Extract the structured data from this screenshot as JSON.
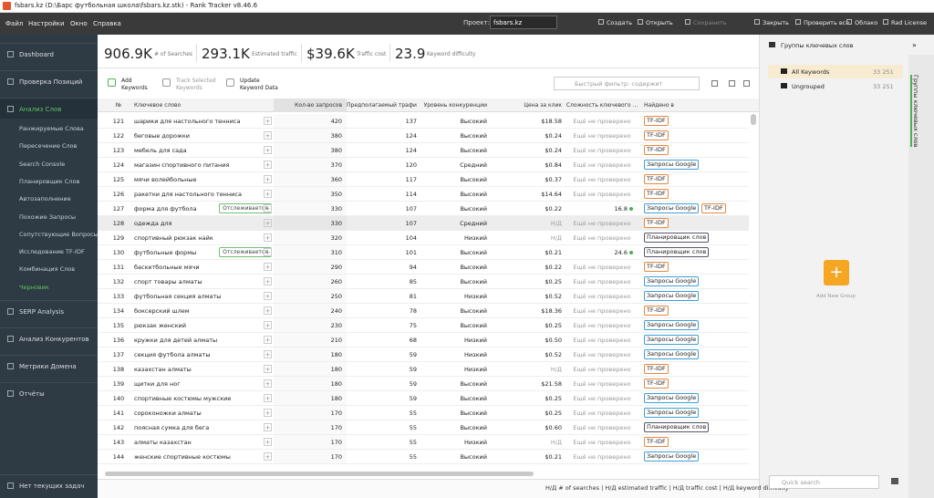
{
  "window": {
    "title": "fsbars.kz (D:\\Барс футбольная школа\\fsbars.kz.stk) - Rank Tracker v8.46.6"
  },
  "menu": [
    "Файл",
    "Настройки",
    "Окно",
    "Справка"
  ],
  "toolbar": {
    "project_label": "Проект:",
    "project": "fsbars.kz",
    "buttons": [
      "Создать",
      "Открыть",
      "Сохранить",
      "Закрыть",
      "Проверить все",
      "Облако",
      "Rad License"
    ]
  },
  "sidebar": {
    "top": [
      "Dashboard",
      "Проверка Позиций",
      "Анализ Слов"
    ],
    "subitems": [
      "Ранжируемые Слова",
      "Пересечение Слов",
      "Search Console",
      "Планировщик Слов",
      "Автозаполнение",
      "Похожие Запросы",
      "Сопутствующие Вопросы",
      "Исследование TF-IDF",
      "Комбинация Слов",
      "Черновик"
    ],
    "active_subitem": 9,
    "bottom": [
      "SERP Analysis",
      "Анализ Конкурентов",
      "Метрики Домена",
      "Отчёты"
    ],
    "status": "Нет текущих задач"
  },
  "stats": [
    {
      "value": "906.9K",
      "label": "# of Searches"
    },
    {
      "value": "293.1K",
      "label": "Estimated traffic"
    },
    {
      "value": "$39.6K",
      "label": "Traffic cost"
    },
    {
      "value": "23.9",
      "label": "Keyword difficulty"
    }
  ],
  "actions": [
    [
      "Add",
      "Keywords"
    ],
    [
      "Track Selected",
      "Keywords"
    ],
    [
      "Update",
      "Keyword Data"
    ]
  ],
  "filter_placeholder": "Быстрый фильтр: содержит",
  "table": {
    "columns": [
      "№",
      "Ключевое слово",
      "Кол-во запросов",
      "Предполагаемый трафик",
      "Уровень конкуренции",
      "Цена за клик",
      "Сложность ключевого ...",
      "Найдено в"
    ],
    "rows": [
      {
        "n": 121,
        "keyword": "шарики для настольного тенниса",
        "searches": 420,
        "traffic": 137,
        "competition": "Высокий",
        "cpc": "$18.58",
        "difficulty": "Ещё не проверено",
        "found": [
          "TF-IDF"
        ]
      },
      {
        "n": 122,
        "keyword": "беговые дорожки",
        "searches": 380,
        "traffic": 124,
        "competition": "Высокий",
        "cpc": "$0.24",
        "difficulty": "Ещё не проверено",
        "found": [
          "TF-IDF"
        ]
      },
      {
        "n": 123,
        "keyword": "мебель для сада",
        "searches": 380,
        "traffic": 124,
        "competition": "Высокий",
        "cpc": "$0.24",
        "difficulty": "Ещё не проверено",
        "found": [
          "TF-IDF"
        ]
      },
      {
        "n": 124,
        "keyword": "магазин спортивного питания",
        "searches": 370,
        "traffic": 120,
        "competition": "Средний",
        "cpc": "$0.84",
        "difficulty": "Ещё не проверено",
        "found": [
          "Запросы Google"
        ]
      },
      {
        "n": 125,
        "keyword": "мячи волейбольные",
        "searches": 360,
        "traffic": 117,
        "competition": "Высокий",
        "cpc": "$0.37",
        "difficulty": "Ещё не проверено",
        "found": [
          "TF-IDF"
        ]
      },
      {
        "n": 126,
        "keyword": "ракетки для настольного тенниса",
        "searches": 350,
        "traffic": 114,
        "competition": "Высокий",
        "cpc": "$14.64",
        "difficulty": "Ещё не проверено",
        "found": [
          "TF-IDF"
        ]
      },
      {
        "n": 127,
        "keyword": "форма для футбола",
        "status": "Отслеживается",
        "searches": 330,
        "traffic": 107,
        "competition": "Высокий",
        "cpc": "$0.22",
        "difficulty": 16.8,
        "found": [
          "Запросы Google",
          "TF-IDF"
        ]
      },
      {
        "n": 128,
        "keyword": "одежда для",
        "searches": 330,
        "traffic": 107,
        "competition": "Средний",
        "cpc": "Н/Д",
        "difficulty": "Ещё не проверено",
        "found": [
          "TF-IDF"
        ]
      },
      {
        "n": 129,
        "keyword": "спортивный рюкзак найк",
        "searches": 320,
        "traffic": 104,
        "competition": "Низкий",
        "cpc": "Н/Д",
        "difficulty": "Ещё не проверено",
        "found": [
          "Планировщик слов"
        ]
      },
      {
        "n": 130,
        "keyword": "футбольные формы",
        "status": "Отслеживается",
        "searches": 310,
        "traffic": 101,
        "competition": "Высокий",
        "cpc": "$0.21",
        "difficulty": 24.6,
        "found": [
          "Планировщик слов"
        ]
      },
      {
        "n": 131,
        "keyword": "баскетбольные мячи",
        "searches": 290,
        "traffic": 94,
        "competition": "Высокий",
        "cpc": "$0.22",
        "difficulty": "Ещё не проверено",
        "found": [
          "TF-IDF"
        ]
      },
      {
        "n": 132,
        "keyword": "спорт товары алматы",
        "searches": 260,
        "traffic": 85,
        "competition": "Высокий",
        "cpc": "$0.25",
        "difficulty": "Ещё не проверено",
        "found": [
          "Запросы Google"
        ]
      },
      {
        "n": 133,
        "keyword": "футбольная секция алматы",
        "searches": 250,
        "traffic": 81,
        "competition": "Низкий",
        "cpc": "$0.52",
        "difficulty": "Ещё не проверено",
        "found": [
          "Запросы Google"
        ]
      },
      {
        "n": 134,
        "keyword": "боксерский шлем",
        "searches": 240,
        "traffic": 78,
        "competition": "Высокий",
        "cpc": "$18.36",
        "difficulty": "Ещё не проверено",
        "found": [
          "TF-IDF"
        ]
      },
      {
        "n": 135,
        "keyword": "рюкзак женский",
        "searches": 230,
        "traffic": 75,
        "competition": "Высокий",
        "cpc": "$0.25",
        "difficulty": "Ещё не проверено",
        "found": [
          "Запросы Google"
        ]
      },
      {
        "n": 136,
        "keyword": "кружки для детей алматы",
        "searches": 210,
        "traffic": 68,
        "competition": "Низкий",
        "cpc": "$0.50",
        "difficulty": "Ещё не проверено",
        "found": [
          "Запросы Google"
        ]
      },
      {
        "n": 137,
        "keyword": "секция футбола алматы",
        "searches": 180,
        "traffic": 59,
        "competition": "Низкий",
        "cpc": "$0.52",
        "difficulty": "Ещё не проверено",
        "found": [
          "Запросы Google"
        ]
      },
      {
        "n": 138,
        "keyword": "казахстан алматы",
        "searches": 180,
        "traffic": 59,
        "competition": "Низкий",
        "cpc": "Н/Д",
        "difficulty": "Ещё не проверено",
        "found": [
          "TF-IDF"
        ]
      },
      {
        "n": 139,
        "keyword": "щитки для ног",
        "searches": 180,
        "traffic": 59,
        "competition": "Высокий",
        "cpc": "$21.58",
        "difficulty": "Ещё не проверено",
        "found": [
          "TF-IDF"
        ]
      },
      {
        "n": 140,
        "keyword": "спортивные костюмы мужские",
        "searches": 180,
        "traffic": 59,
        "competition": "Высокий",
        "cpc": "$0.25",
        "difficulty": "Ещё не проверено",
        "found": [
          "Запросы Google"
        ]
      },
      {
        "n": 141,
        "keyword": "сороконожки алматы",
        "searches": 170,
        "traffic": 55,
        "competition": "Высокий",
        "cpc": "$0.25",
        "difficulty": "Ещё не проверено",
        "found": [
          "Запросы Google"
        ]
      },
      {
        "n": 142,
        "keyword": "поясная сумка для бега",
        "searches": 170,
        "traffic": 55,
        "competition": "Высокий",
        "cpc": "$0.60",
        "difficulty": "Ещё не проверено",
        "found": [
          "Планировщик слов"
        ]
      },
      {
        "n": 143,
        "keyword": "алматы казахстан",
        "searches": 170,
        "traffic": 55,
        "competition": "Низкий",
        "cpc": "Н/Д",
        "difficulty": "Ещё не проверено",
        "found": [
          "TF-IDF"
        ]
      },
      {
        "n": 144,
        "keyword": "женские спортивные костюмы",
        "searches": 170,
        "traffic": 55,
        "competition": "Высокий",
        "cpc": "$0.21",
        "difficulty": "Ещё не проверено",
        "found": [
          "Запросы Google"
        ]
      }
    ],
    "highlighted_row": 7
  },
  "footer": "Н/Д # of searches | Н/Д estimated traffic | Н/Д traffic cost | Н/Д keyword difficulty",
  "groups": {
    "title": "Группы ключевых слов",
    "items": [
      {
        "name": "All Keywords",
        "count": "33 251"
      },
      {
        "name": "Ungrouped",
        "count": "33 251"
      }
    ],
    "add": "Add New Group",
    "search_placeholder": "Quick search",
    "tab": "Группы ключевых слов"
  }
}
